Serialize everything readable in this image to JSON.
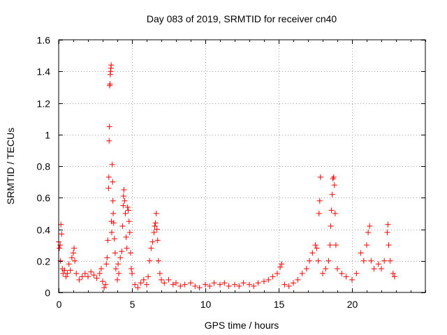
{
  "chart_data": {
    "type": "scatter",
    "title": "Day 083 of 2019, SRMTID for receiver cn40",
    "xlabel": "GPS time / hours",
    "ylabel": "SRMTID / TECUs",
    "xlim": [
      0,
      25
    ],
    "ylim": [
      0,
      1.6
    ],
    "xticks": [
      0,
      5,
      10,
      15,
      20
    ],
    "xtick_labels": [
      "0",
      "5",
      "10",
      "15",
      "20"
    ],
    "yticks": [
      0,
      0.2,
      0.4,
      0.6,
      0.8,
      1.0,
      1.2,
      1.4,
      1.6
    ],
    "ytick_labels": [
      "0",
      "0.2",
      "0.4",
      "0.6",
      "0.8",
      "1",
      "1.2",
      "1.4",
      "1.6"
    ],
    "grid": true,
    "marker": "+",
    "series": [
      {
        "name": "SRMTID",
        "color": "#ff0000",
        "points": [
          [
            0.0,
            0.32
          ],
          [
            0.05,
            0.28
          ],
          [
            0.1,
            0.3
          ],
          [
            0.12,
            0.2
          ],
          [
            0.15,
            0.43
          ],
          [
            0.2,
            0.37
          ],
          [
            0.25,
            0.15
          ],
          [
            0.3,
            0.12
          ],
          [
            0.4,
            0.14
          ],
          [
            0.5,
            0.1
          ],
          [
            0.6,
            0.12
          ],
          [
            0.7,
            0.18
          ],
          [
            0.8,
            0.14
          ],
          [
            0.9,
            0.22
          ],
          [
            1.0,
            0.25
          ],
          [
            1.05,
            0.28
          ],
          [
            1.1,
            0.2
          ],
          [
            1.2,
            0.12
          ],
          [
            1.4,
            0.08
          ],
          [
            1.6,
            0.1
          ],
          [
            1.8,
            0.12
          ],
          [
            2.0,
            0.1
          ],
          [
            2.2,
            0.13
          ],
          [
            2.4,
            0.11
          ],
          [
            2.6,
            0.09
          ],
          [
            2.8,
            0.12
          ],
          [
            2.9,
            0.15
          ],
          [
            3.0,
            0.07
          ],
          [
            3.1,
            0.03
          ],
          [
            3.2,
            0.05
          ],
          [
            3.25,
            0.18
          ],
          [
            3.3,
            0.22
          ],
          [
            3.35,
            0.33
          ],
          [
            3.4,
            0.66
          ],
          [
            3.42,
            0.73
          ],
          [
            3.44,
            0.96
          ],
          [
            3.46,
            1.05
          ],
          [
            3.48,
            1.31
          ],
          [
            3.5,
            1.32
          ],
          [
            3.52,
            1.38
          ],
          [
            3.54,
            1.4
          ],
          [
            3.56,
            1.42
          ],
          [
            3.58,
            1.44
          ],
          [
            3.6,
            0.45
          ],
          [
            3.62,
            0.38
          ],
          [
            3.65,
            0.81
          ],
          [
            3.68,
            0.7
          ],
          [
            3.7,
            0.58
          ],
          [
            3.72,
            0.5
          ],
          [
            3.75,
            0.44
          ],
          [
            3.8,
            0.34
          ],
          [
            3.85,
            0.25
          ],
          [
            3.9,
            0.15
          ],
          [
            4.0,
            0.08
          ],
          [
            4.05,
            0.18
          ],
          [
            4.1,
            0.12
          ],
          [
            4.2,
            0.22
          ],
          [
            4.3,
            0.26
          ],
          [
            4.35,
            0.42
          ],
          [
            4.4,
            0.55
          ],
          [
            4.42,
            0.61
          ],
          [
            4.45,
            0.65
          ],
          [
            4.5,
            0.58
          ],
          [
            4.55,
            0.5
          ],
          [
            4.6,
            0.35
          ],
          [
            4.65,
            0.28
          ],
          [
            4.7,
            0.54
          ],
          [
            4.75,
            0.52
          ],
          [
            4.8,
            0.45
          ],
          [
            4.85,
            0.38
          ],
          [
            4.9,
            0.25
          ],
          [
            4.95,
            0.15
          ],
          [
            5.0,
            0.12
          ],
          [
            5.2,
            0.05
          ],
          [
            5.4,
            0.03
          ],
          [
            5.6,
            0.06
          ],
          [
            5.8,
            0.08
          ],
          [
            6.0,
            0.05
          ],
          [
            6.1,
            0.1
          ],
          [
            6.2,
            0.2
          ],
          [
            6.3,
            0.28
          ],
          [
            6.4,
            0.32
          ],
          [
            6.5,
            0.38
          ],
          [
            6.55,
            0.42
          ],
          [
            6.6,
            0.44
          ],
          [
            6.65,
            0.5
          ],
          [
            6.7,
            0.4
          ],
          [
            6.75,
            0.33
          ],
          [
            6.8,
            0.2
          ],
          [
            6.9,
            0.12
          ],
          [
            7.0,
            0.08
          ],
          [
            7.2,
            0.06
          ],
          [
            7.5,
            0.08
          ],
          [
            7.8,
            0.05
          ],
          [
            8.0,
            0.06
          ],
          [
            8.3,
            0.04
          ],
          [
            8.6,
            0.05
          ],
          [
            9.0,
            0.06
          ],
          [
            9.3,
            0.04
          ],
          [
            9.6,
            0.03
          ],
          [
            10.0,
            0.05
          ],
          [
            10.3,
            0.04
          ],
          [
            10.6,
            0.06
          ],
          [
            11.0,
            0.05
          ],
          [
            11.3,
            0.06
          ],
          [
            11.6,
            0.04
          ],
          [
            12.0,
            0.05
          ],
          [
            12.3,
            0.04
          ],
          [
            12.6,
            0.06
          ],
          [
            13.0,
            0.05
          ],
          [
            13.3,
            0.04
          ],
          [
            13.6,
            0.06
          ],
          [
            14.0,
            0.07
          ],
          [
            14.3,
            0.08
          ],
          [
            14.6,
            0.1
          ],
          [
            14.9,
            0.12
          ],
          [
            15.1,
            0.16
          ],
          [
            15.2,
            0.18
          ],
          [
            15.4,
            0.05
          ],
          [
            15.7,
            0.04
          ],
          [
            16.0,
            0.06
          ],
          [
            16.3,
            0.08
          ],
          [
            16.6,
            0.12
          ],
          [
            16.9,
            0.15
          ],
          [
            17.1,
            0.2
          ],
          [
            17.3,
            0.25
          ],
          [
            17.5,
            0.3
          ],
          [
            17.6,
            0.28
          ],
          [
            17.7,
            0.2
          ],
          [
            17.75,
            0.5
          ],
          [
            17.8,
            0.58
          ],
          [
            17.85,
            0.73
          ],
          [
            18.0,
            0.12
          ],
          [
            18.2,
            0.15
          ],
          [
            18.4,
            0.2
          ],
          [
            18.5,
            0.3
          ],
          [
            18.55,
            0.42
          ],
          [
            18.6,
            0.52
          ],
          [
            18.65,
            0.62
          ],
          [
            18.7,
            0.72
          ],
          [
            18.75,
            0.73
          ],
          [
            18.8,
            0.68
          ],
          [
            18.85,
            0.5
          ],
          [
            18.9,
            0.3
          ],
          [
            19.0,
            0.15
          ],
          [
            19.3,
            0.12
          ],
          [
            19.6,
            0.1
          ],
          [
            20.0,
            0.08
          ],
          [
            20.3,
            0.12
          ],
          [
            20.6,
            0.25
          ],
          [
            20.8,
            0.2
          ],
          [
            21.0,
            0.3
          ],
          [
            21.1,
            0.38
          ],
          [
            21.2,
            0.42
          ],
          [
            21.3,
            0.2
          ],
          [
            21.5,
            0.15
          ],
          [
            21.8,
            0.18
          ],
          [
            22.0,
            0.15
          ],
          [
            22.2,
            0.2
          ],
          [
            22.4,
            0.38
          ],
          [
            22.45,
            0.43
          ],
          [
            22.5,
            0.3
          ],
          [
            22.6,
            0.2
          ],
          [
            22.8,
            0.12
          ],
          [
            22.9,
            0.1
          ]
        ]
      }
    ]
  }
}
